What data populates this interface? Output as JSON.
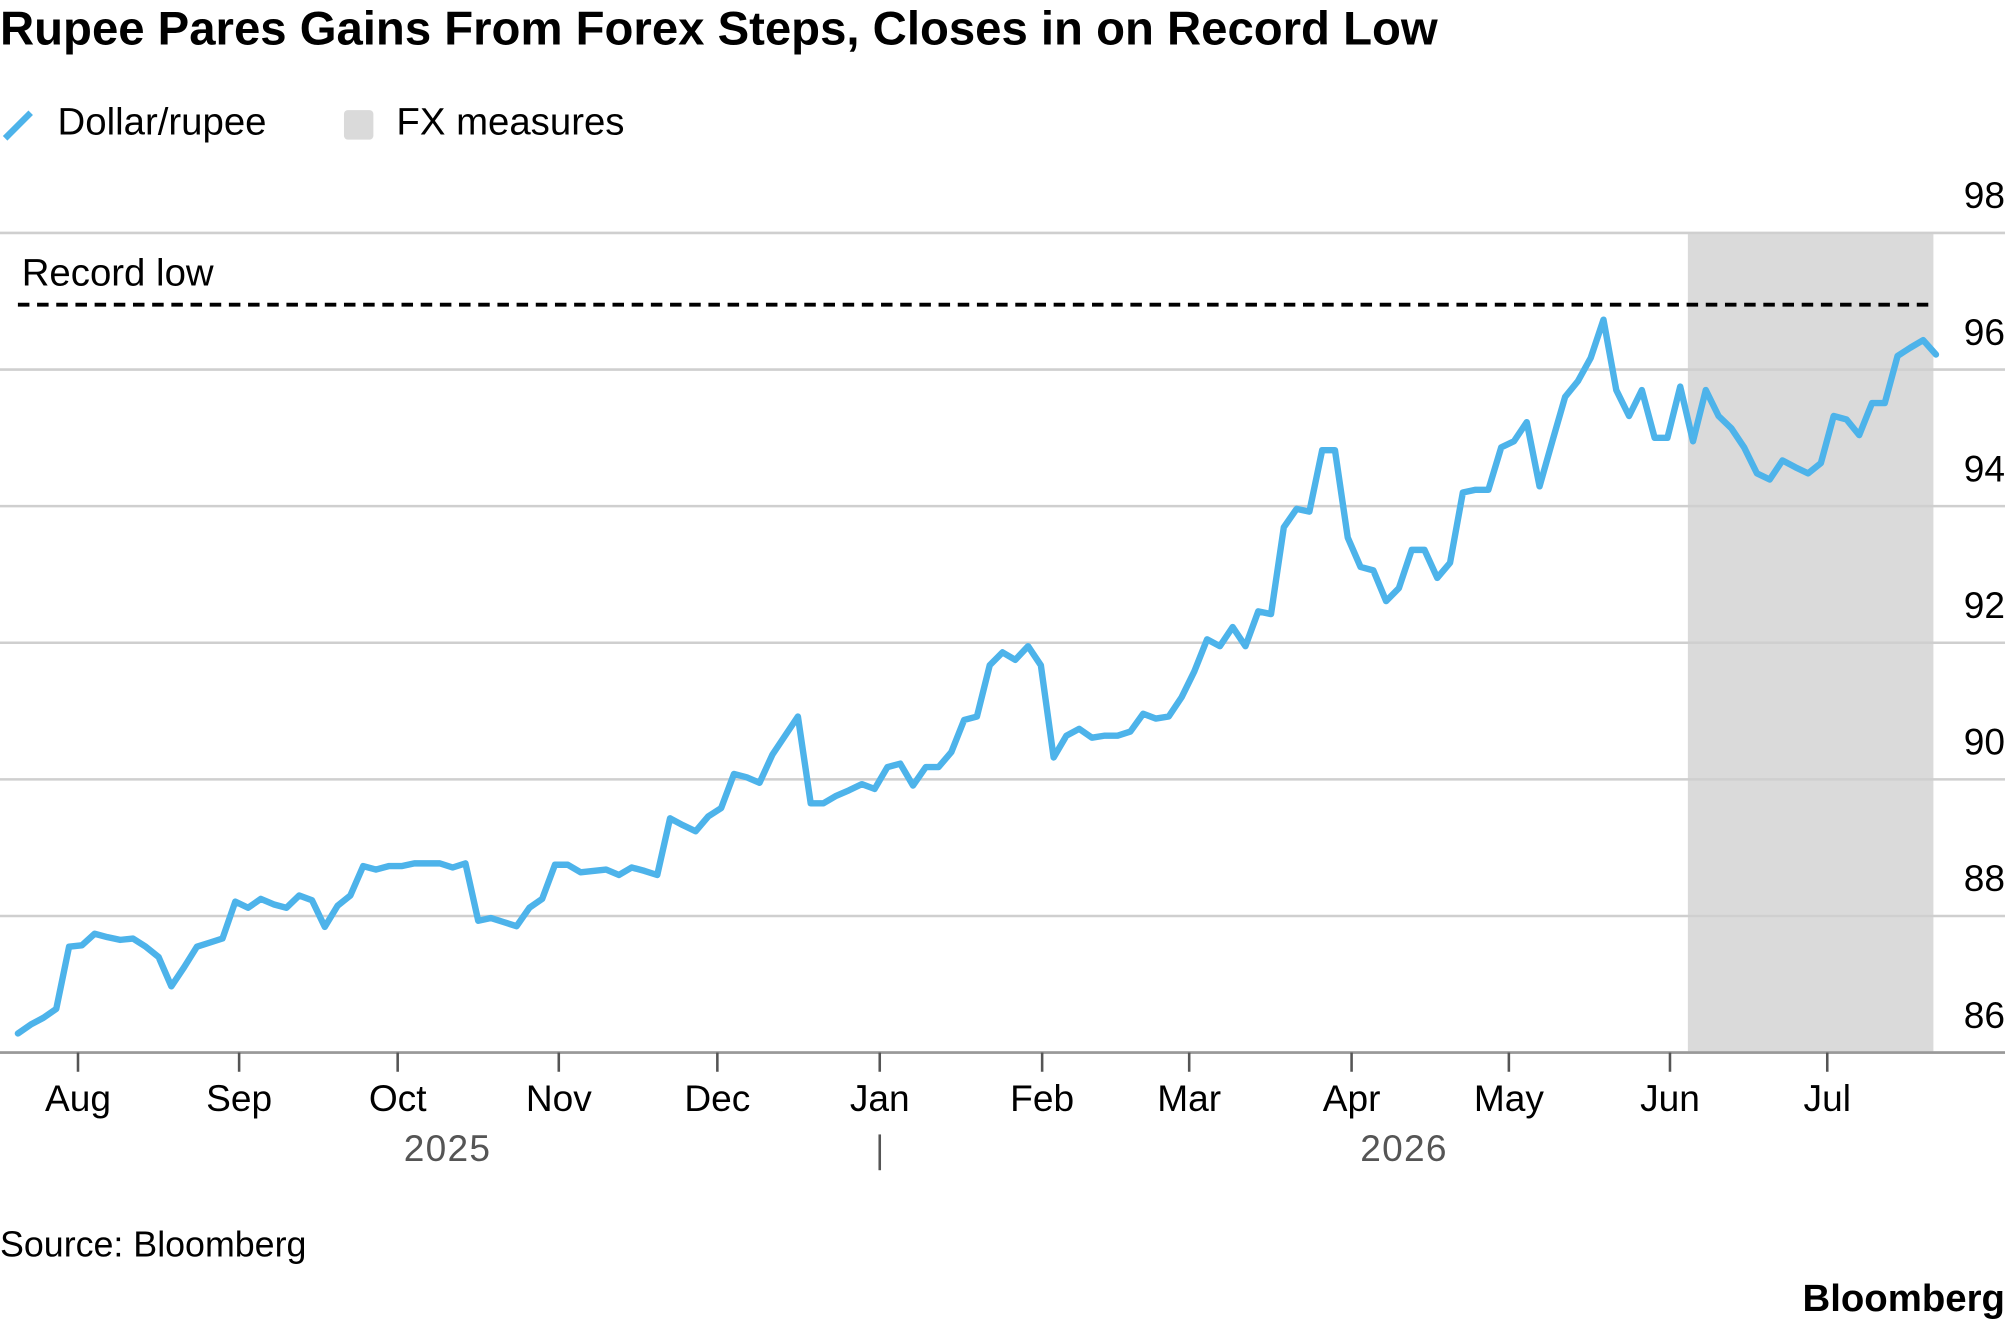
{
  "chart_data": {
    "type": "line",
    "title": "Rupee Pares Gains From Forex Steps, Closes in on Record Low",
    "source": "Source: Bloomberg",
    "brand": "Bloomberg",
    "series": [
      {
        "name": "Dollar/rupee",
        "color": "#4db3ea",
        "values": [
          86.28,
          86.41,
          86.51,
          86.64,
          87.55,
          87.57,
          87.74,
          87.69,
          87.65,
          87.67,
          87.55,
          87.4,
          86.97,
          87.25,
          87.55,
          87.61,
          87.67,
          88.21,
          88.12,
          88.25,
          88.17,
          88.12,
          88.3,
          88.23,
          87.84,
          88.15,
          88.3,
          88.73,
          88.68,
          88.73,
          88.73,
          88.77,
          88.77,
          88.77,
          88.71,
          88.77,
          87.93,
          87.97,
          87.91,
          87.85,
          88.12,
          88.25,
          88.75,
          88.75,
          88.64,
          88.66,
          88.68,
          88.6,
          88.71,
          88.66,
          88.6,
          89.43,
          89.33,
          89.24,
          89.46,
          89.58,
          90.08,
          90.03,
          89.95,
          90.36,
          90.64,
          90.92,
          89.65,
          89.65,
          89.76,
          89.84,
          89.93,
          89.86,
          90.18,
          90.23,
          89.91,
          90.18,
          90.18,
          90.4,
          90.87,
          90.92,
          91.67,
          91.86,
          91.75,
          91.95,
          91.67,
          90.32,
          90.64,
          90.74,
          90.61,
          90.64,
          90.64,
          90.7,
          90.96,
          90.89,
          90.92,
          91.2,
          91.58,
          92.05,
          91.95,
          92.23,
          91.95,
          92.46,
          92.42,
          93.69,
          93.96,
          93.92,
          94.82,
          94.82,
          93.54,
          93.11,
          93.06,
          92.61,
          92.8,
          93.36,
          93.36,
          92.95,
          93.17,
          94.2,
          94.24,
          94.24,
          94.86,
          94.95,
          95.23,
          94.29,
          94.95,
          95.6,
          95.83,
          96.17,
          96.73,
          95.7,
          95.32,
          95.7,
          95,
          95,
          95.75,
          94.95,
          95.7,
          95.32,
          95.14,
          94.86,
          94.48,
          94.39,
          94.67,
          94.57,
          94.48,
          94.63,
          95.32,
          95.27,
          95.04,
          95.51,
          95.51,
          96.2,
          96.32,
          96.43,
          96.22
        ]
      }
    ],
    "shaded": {
      "label": "FX measures",
      "color": "#dadada",
      "x": [
        130.6,
        149.8
      ]
    },
    "reference": {
      "label": "Record low",
      "value": 96.95
    },
    "xlim": [
      0,
      150
    ],
    "xticks": [
      {
        "value": 4.7,
        "label": "Aug"
      },
      {
        "value": 17.3,
        "label": "Sep"
      },
      {
        "value": 29.7,
        "label": "Oct"
      },
      {
        "value": 42.3,
        "label": "Nov"
      },
      {
        "value": 54.7,
        "label": "Dec"
      },
      {
        "value": 67.4,
        "label": "Jan"
      },
      {
        "value": 80.1,
        "label": "Feb"
      },
      {
        "value": 91.6,
        "label": "Mar"
      },
      {
        "value": 104.3,
        "label": "Apr"
      },
      {
        "value": 116.6,
        "label": "May"
      },
      {
        "value": 129.2,
        "label": "Jun"
      },
      {
        "value": 141.5,
        "label": "Jul"
      }
    ],
    "year_labels": [
      {
        "value": 33.6,
        "label": "2025"
      },
      {
        "value": 108.4,
        "label": "2026"
      }
    ],
    "ylim": [
      86,
      98
    ],
    "yticks": [
      86,
      88,
      90,
      92,
      94,
      96,
      98
    ],
    "grid": true
  }
}
